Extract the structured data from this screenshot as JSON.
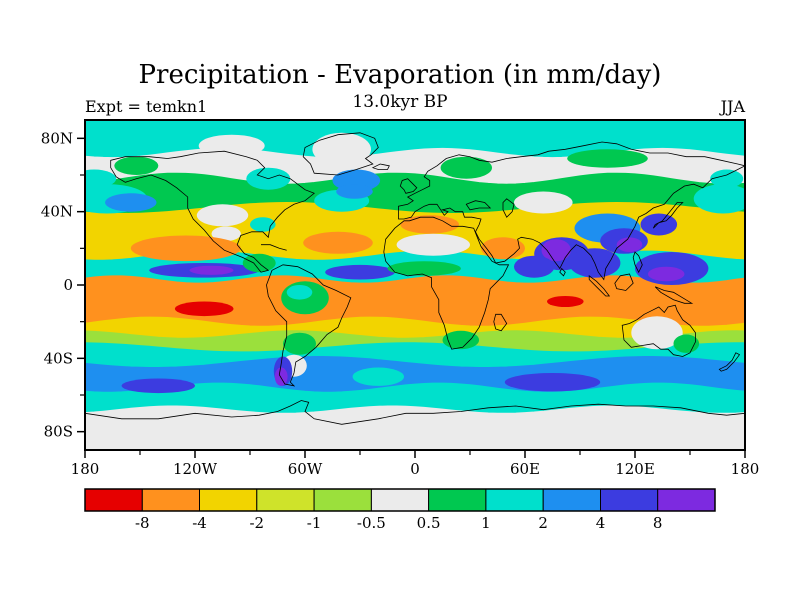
{
  "header": {
    "title": "Precipitation - Evaporation (in mm/day)",
    "subtitle": "13.0kyr BP",
    "experiment_label": "Expt = temkn1",
    "season_label": "JJA"
  },
  "chart_data": {
    "type": "heatmap",
    "title": "Precipitation - Evaporation (in mm/day)",
    "subtitle": "13.0kyr BP",
    "experiment": "temkn1",
    "season": "JJA",
    "units": "mm/day",
    "projection": "equirectangular",
    "lon_range": [
      -180,
      180
    ],
    "lat_range": [
      -90,
      90
    ],
    "lat_ticks": {
      "major": [
        {
          "deg": 80,
          "label": "80N"
        },
        {
          "deg": 40,
          "label": "40N"
        },
        {
          "deg": 0,
          "label": "0"
        },
        {
          "deg": -40,
          "label": "40S"
        },
        {
          "deg": -80,
          "label": "80S"
        }
      ],
      "minor": [
        60,
        20,
        -20,
        -60
      ]
    },
    "lon_ticks": {
      "major": [
        {
          "deg": -180,
          "label": "180"
        },
        {
          "deg": -120,
          "label": "120W"
        },
        {
          "deg": -60,
          "label": "60W"
        },
        {
          "deg": 0,
          "label": "0"
        },
        {
          "deg": 60,
          "label": "60E"
        },
        {
          "deg": 120,
          "label": "120E"
        },
        {
          "deg": 180,
          "label": "180"
        }
      ],
      "minor": [
        -150,
        -90,
        -30,
        30,
        90,
        150
      ]
    },
    "colorbar": {
      "position": "bottom",
      "levels": [
        -8,
        -4,
        -2,
        -1,
        -0.5,
        0.5,
        1,
        2,
        4,
        8
      ],
      "labels": [
        "-8",
        "-4",
        "-2",
        "-1",
        "-0.5",
        "0.5",
        "1",
        "2",
        "4",
        "8"
      ],
      "colors": [
        "#e60000",
        "#ff911e",
        "#f2d400",
        "#cfe32a",
        "#9be03c",
        "#ebebeb",
        "#00c850",
        "#00e0cc",
        "#1e8ff0",
        "#3c3ce0",
        "#7d2ae0"
      ]
    },
    "field_approximation": {
      "band_boundaries": [
        {
          "lat": 90
        },
        {
          "lat": 72,
          "amp": 2.5,
          "freq": 3,
          "phase": 0.8
        },
        {
          "lat": 58,
          "amp": 3,
          "freq": 3,
          "phase": 2.1
        },
        {
          "lat": 42,
          "amp": 3,
          "freq": 2,
          "phase": 4.0
        },
        {
          "lat": 16,
          "amp": 2.5,
          "freq": 3,
          "phase": 1.2
        },
        {
          "lat": 3,
          "amp": 2,
          "freq": 4,
          "phase": 0.4
        },
        {
          "lat": -20,
          "amp": 2.5,
          "freq": 3,
          "phase": 2.8
        },
        {
          "lat": -27,
          "amp": 2,
          "freq": 3,
          "phase": 5.0
        },
        {
          "lat": -34,
          "amp": 2.5,
          "freq": 2,
          "phase": 1.7
        },
        {
          "lat": -42,
          "amp": 3,
          "freq": 2,
          "phase": 3.4
        },
        {
          "lat": -56,
          "amp": 2.5,
          "freq": 3,
          "phase": 0.9
        },
        {
          "lat": -68,
          "amp": 2,
          "freq": 3,
          "phase": 2.2
        },
        {
          "lat": -90
        }
      ],
      "band_colors": [
        7,
        5,
        6,
        2,
        7,
        1,
        2,
        4,
        7,
        8,
        7,
        5
      ],
      "features": [
        [
          -40,
          74,
          16,
          9,
          5
        ],
        [
          -100,
          76,
          18,
          6,
          5
        ],
        [
          105,
          69,
          22,
          5,
          6
        ],
        [
          -152,
          65,
          12,
          5,
          6
        ],
        [
          28,
          64,
          14,
          6,
          6
        ],
        [
          -80,
          58,
          12,
          6,
          7
        ],
        [
          -32,
          57,
          13,
          6,
          8
        ],
        [
          -175,
          58,
          12,
          5,
          7
        ],
        [
          170,
          58,
          9,
          5,
          7
        ],
        [
          -168,
          47,
          22,
          8,
          7
        ],
        [
          168,
          47,
          16,
          8,
          7
        ],
        [
          -155,
          45,
          14,
          5,
          8
        ],
        [
          -40,
          46,
          15,
          6,
          7
        ],
        [
          -33,
          51,
          10,
          4,
          8
        ],
        [
          -105,
          38,
          14,
          6,
          5
        ],
        [
          -83,
          33,
          7,
          4,
          7
        ],
        [
          -103,
          28,
          8,
          4,
          5
        ],
        [
          70,
          45,
          16,
          6,
          5
        ],
        [
          8,
          33,
          16,
          5,
          1
        ],
        [
          105,
          31,
          18,
          8,
          8
        ],
        [
          133,
          33,
          10,
          6,
          9
        ],
        [
          114,
          24,
          13,
          7,
          9
        ],
        [
          117,
          22,
          7,
          4,
          10
        ],
        [
          -125,
          20,
          30,
          7,
          1
        ],
        [
          -42,
          23,
          19,
          6,
          1
        ],
        [
          10,
          22,
          20,
          6,
          5
        ],
        [
          48,
          20,
          12,
          6,
          1
        ],
        [
          80,
          17,
          15,
          9,
          9
        ],
        [
          77,
          19,
          8,
          6,
          10
        ],
        [
          65,
          10,
          11,
          6,
          9
        ],
        [
          98,
          12,
          14,
          8,
          9
        ],
        [
          140,
          9,
          20,
          9,
          9
        ],
        [
          137,
          6,
          10,
          4,
          10
        ],
        [
          -115,
          8,
          30,
          4,
          9
        ],
        [
          -111,
          8,
          12,
          2.5,
          10
        ],
        [
          -30,
          7,
          19,
          4,
          9
        ],
        [
          5,
          9,
          20,
          4,
          6
        ],
        [
          -85,
          12,
          9,
          5,
          6
        ],
        [
          -60,
          -7,
          13,
          9,
          6
        ],
        [
          -63,
          -4,
          7,
          4,
          7
        ],
        [
          -115,
          -13,
          16,
          4,
          0
        ],
        [
          82,
          -9,
          10,
          3,
          0
        ],
        [
          132,
          -26,
          14,
          9,
          5
        ],
        [
          148,
          -32,
          7,
          5,
          6
        ],
        [
          25,
          -30,
          10,
          5,
          6
        ],
        [
          -63,
          -32,
          9,
          6,
          6
        ],
        [
          -66,
          -44,
          7,
          6,
          5
        ],
        [
          -72,
          -47,
          5,
          8,
          9
        ],
        [
          -73,
          -50,
          3.5,
          5,
          10
        ],
        [
          -20,
          -50,
          14,
          5,
          7
        ],
        [
          75,
          -53,
          26,
          5,
          9
        ],
        [
          -140,
          -55,
          20,
          4,
          9
        ]
      ]
    }
  }
}
